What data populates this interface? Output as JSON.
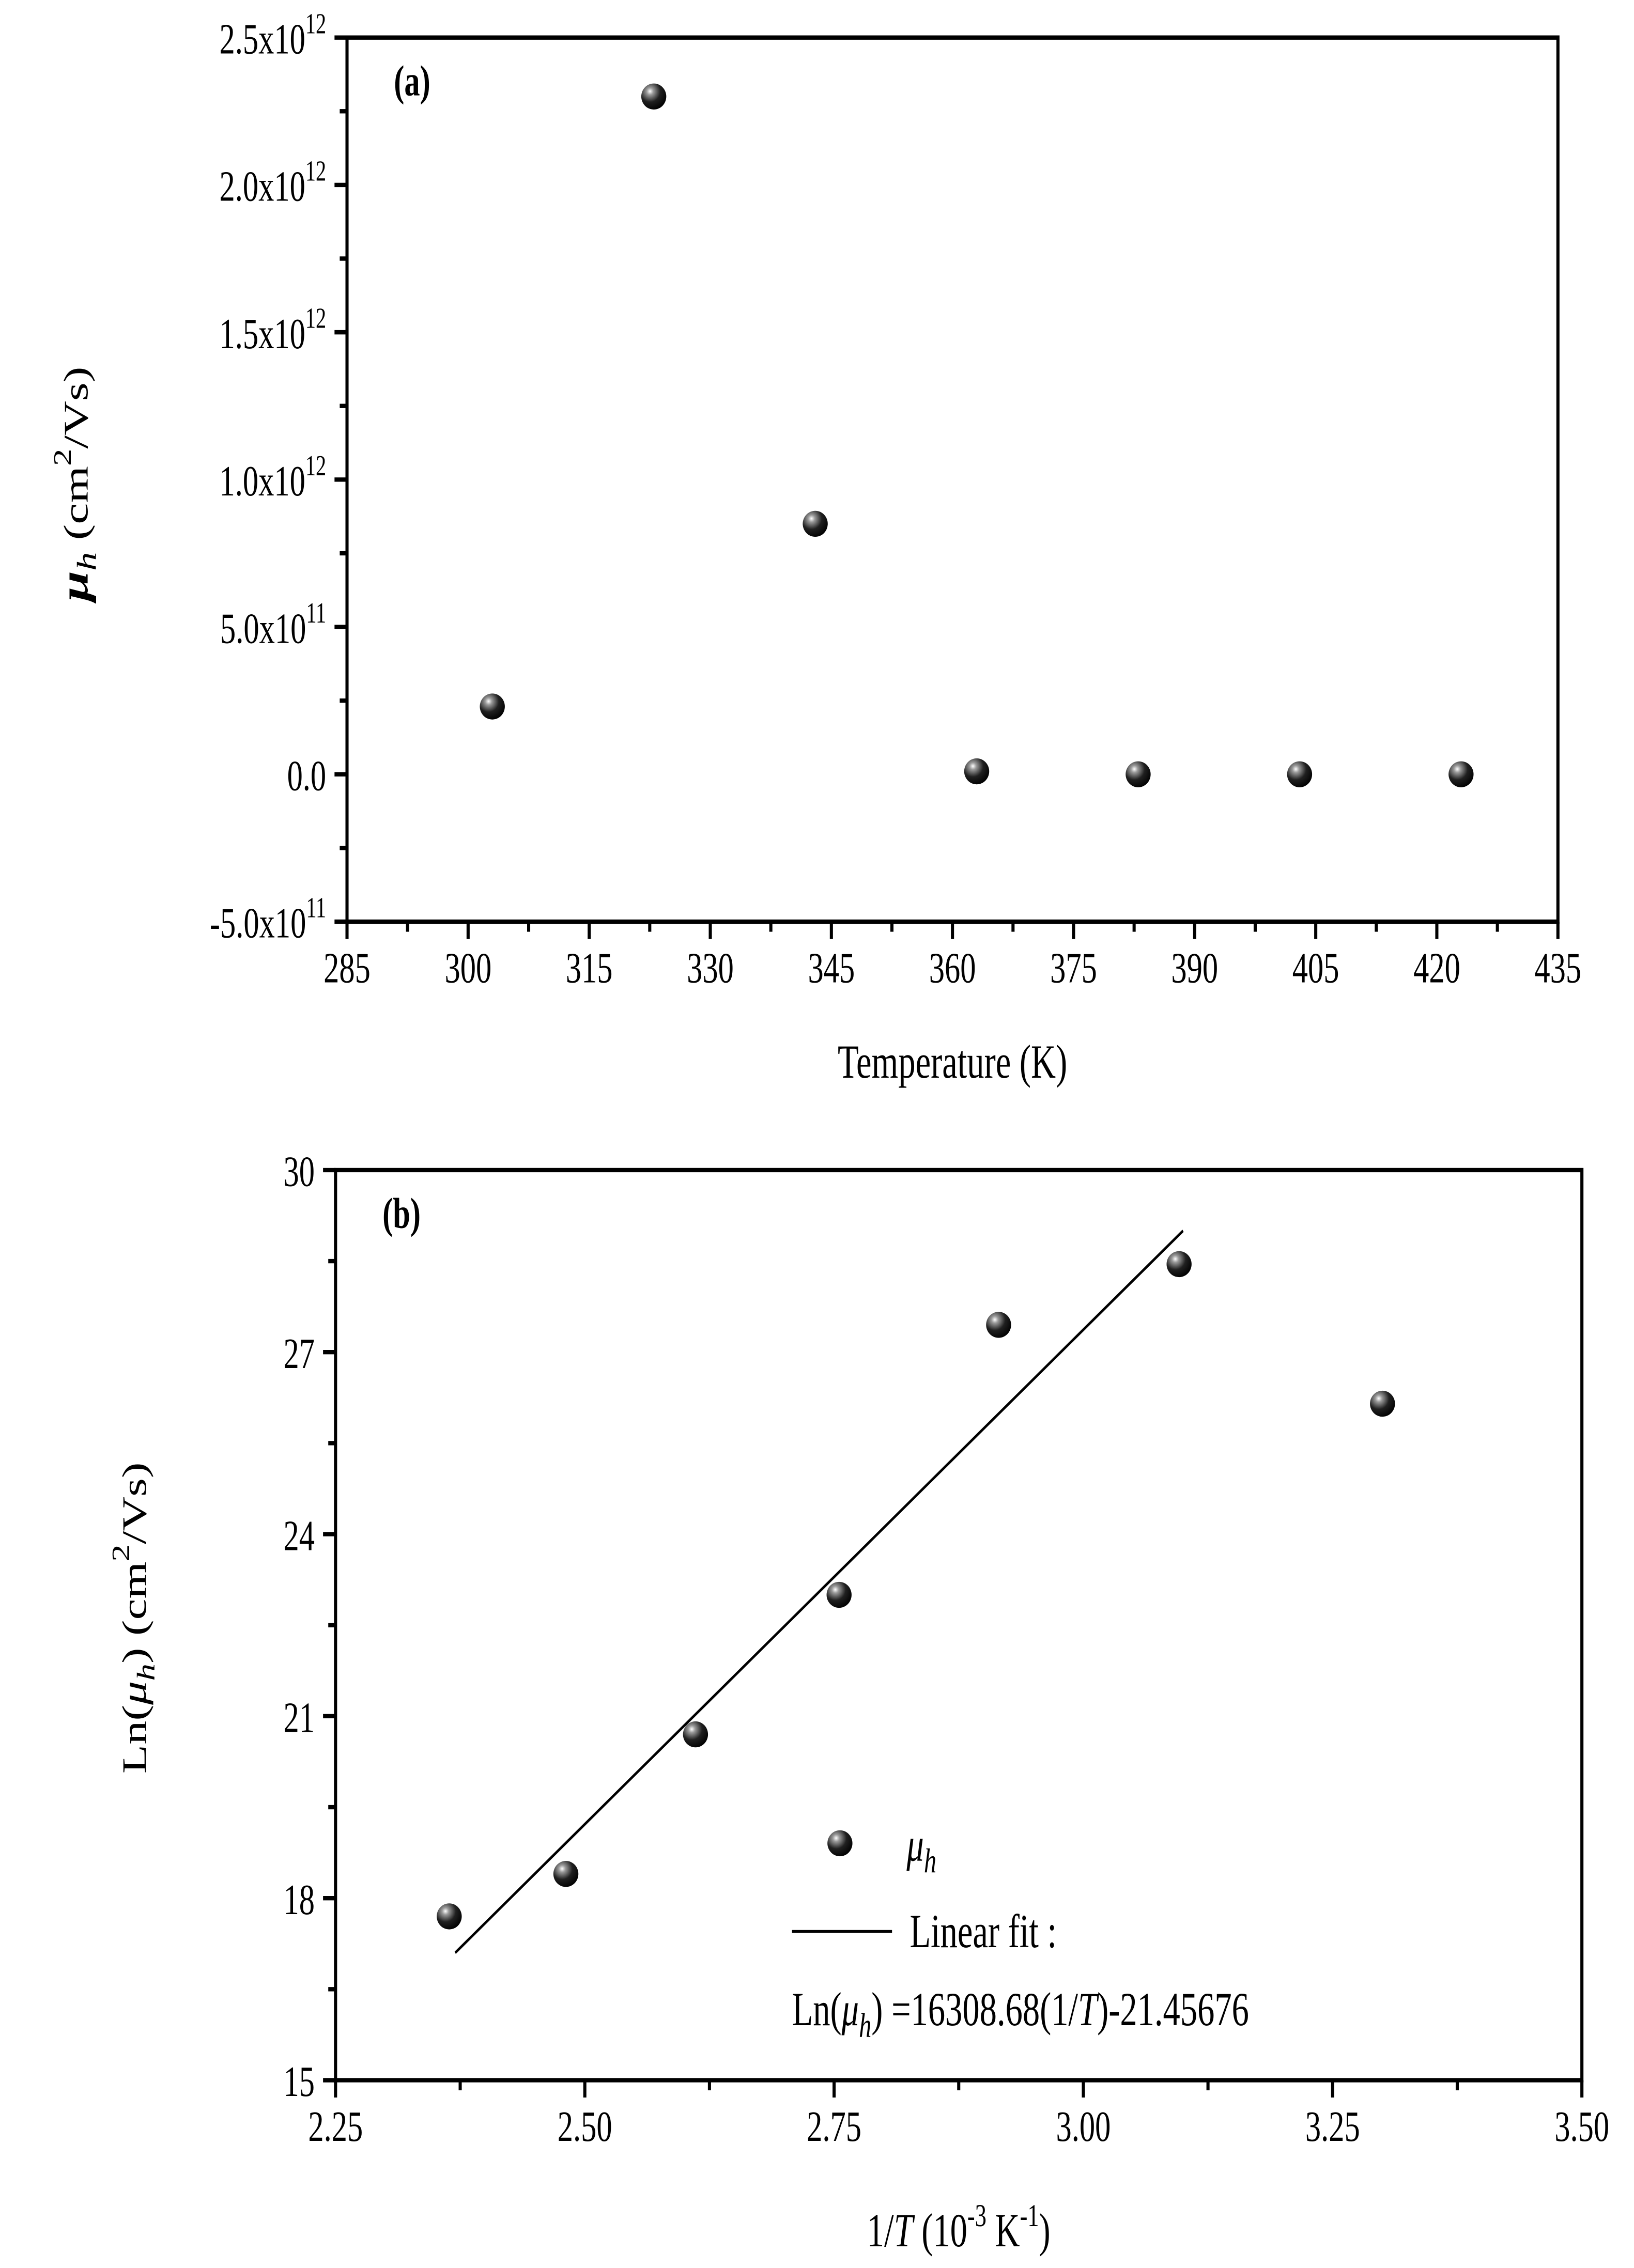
{
  "chart_data": [
    {
      "type": "scatter",
      "panel_label": "(a)",
      "xlabel": "Temperature (K)",
      "ylabel": {
        "symbol": "μ",
        "sub": "h",
        "unit_pre": " (cm",
        "unit_sup": "2",
        "unit_post": "/Vs)"
      },
      "xlim": [
        285,
        435
      ],
      "ylim": [
        -500000000000.0,
        2500000000000.0
      ],
      "xticks": [
        "285",
        "300",
        "315",
        "330",
        "345",
        "360",
        "375",
        "390",
        "405",
        "420",
        "435"
      ],
      "xtick_values": [
        285,
        300,
        315,
        330,
        345,
        360,
        375,
        390,
        405,
        420,
        435
      ],
      "yticks": [
        {
          "base": "-5.0x10",
          "exp": "11",
          "value": -500000000000.0
        },
        {
          "base": "0.0",
          "exp": "",
          "value": 0
        },
        {
          "base": "5.0x10",
          "exp": "11",
          "value": 500000000000.0
        },
        {
          "base": "1.0x10",
          "exp": "12",
          "value": 1000000000000.0
        },
        {
          "base": "1.5x10",
          "exp": "12",
          "value": 1500000000000.0
        },
        {
          "base": "2.0x10",
          "exp": "12",
          "value": 2000000000000.0
        },
        {
          "base": "2.5x10",
          "exp": "12",
          "value": 2500000000000.0
        }
      ],
      "grid": false,
      "series": [
        {
          "name": "μh",
          "x": [
            303,
            323,
            343,
            363,
            383,
            403,
            423
          ],
          "y": [
            230000000000.0,
            2300000000000.0,
            850000000000.0,
            10000000000.0,
            0,
            0,
            0
          ]
        }
      ]
    },
    {
      "type": "scatter",
      "panel_label": "(b)",
      "xlabel": {
        "pre": "1/",
        "italic": "T",
        "mid": " (10",
        "sup1": "-3",
        "mid2": " K",
        "sup2": "-1",
        "post": ")"
      },
      "ylabel": {
        "pre": "Ln(",
        "symbol": "μ",
        "sub": "h",
        "mid": ") (cm",
        "sup": "2",
        "post": "/Vs)"
      },
      "xlim": [
        2.25,
        3.5
      ],
      "ylim": [
        15,
        30
      ],
      "xticks": [
        "2.25",
        "2.50",
        "2.75",
        "3.00",
        "3.25",
        "3.50"
      ],
      "xtick_values": [
        2.25,
        2.5,
        2.75,
        3.0,
        3.25,
        3.5
      ],
      "yticks": [
        "15",
        "18",
        "21",
        "24",
        "27",
        "30"
      ],
      "ytick_values": [
        15,
        18,
        21,
        24,
        27,
        30
      ],
      "grid": false,
      "legend_position": "bottom-right",
      "series": [
        {
          "name": "μh",
          "legend_symbol": "μ",
          "legend_sub": "h",
          "x": [
            2.364,
            2.481,
            2.611,
            2.755,
            2.915,
            3.096,
            3.3
          ],
          "y": [
            17.7,
            18.4,
            20.7,
            23.0,
            27.45,
            28.45,
            26.15
          ]
        },
        {
          "name": "Linear fit :",
          "type": "line",
          "x": [
            2.37,
            3.1
          ],
          "y": [
            17.1,
            29.0
          ]
        }
      ],
      "annotation": {
        "pre": "Ln(",
        "symbol": "μ",
        "sub": "h",
        "mid": ") =16308.68(1/",
        "italic": "T",
        "post": ")-21.45676"
      }
    }
  ]
}
